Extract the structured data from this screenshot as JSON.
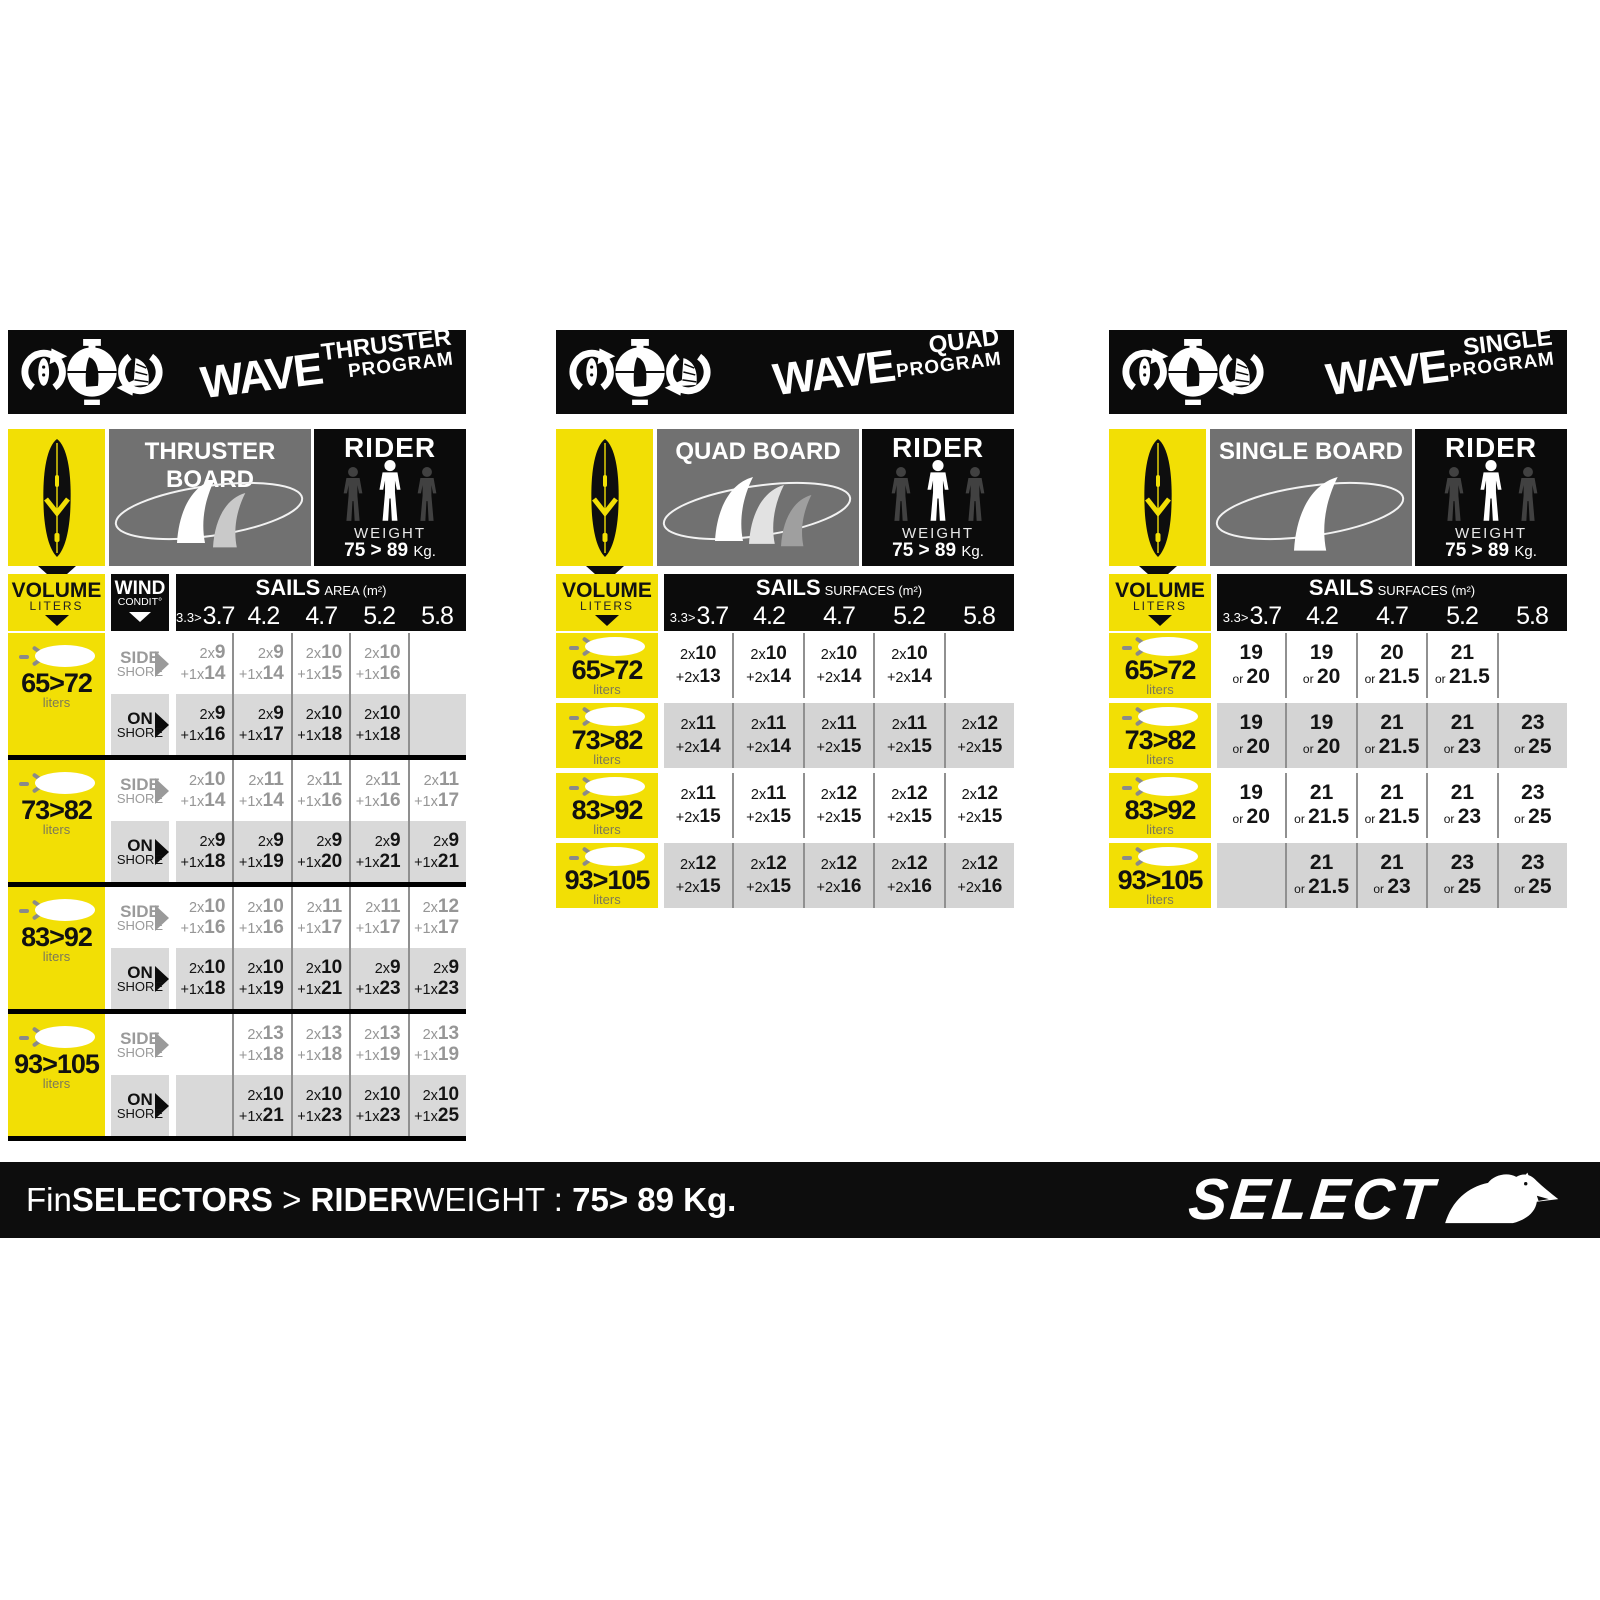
{
  "panels": [
    {
      "program": {
        "wave": "WAVE",
        "suffix": "THRUSTER",
        "sub": "PROGRAM"
      },
      "board_label": "THRUSTER BOARD",
      "rider": {
        "title": "RIDER",
        "weight_label": "WEIGHT",
        "weight_value": "75 > 89",
        "weight_unit": "Kg."
      },
      "volume_header": {
        "title": "VOLUME",
        "sub": "LITERS"
      },
      "wind_header": {
        "title": "WIND",
        "sub": "CONDIT°"
      },
      "sails": {
        "title": "SAILS",
        "unit": "AREA (m²)"
      },
      "sizes": [
        {
          "small": "3.3>",
          "big": "3.7"
        },
        {
          "big": "4.2"
        },
        {
          "big": "4.7"
        },
        {
          "big": "5.2"
        },
        {
          "big": "5.8"
        }
      ],
      "wind_rows": {
        "side": [
          "SIDE",
          "SHORE"
        ],
        "on": [
          "ON",
          "SHORE"
        ]
      },
      "rows": [
        {
          "volume": "65>72",
          "liters": "liters",
          "side": [
            [
              "2x9",
              "+1x14"
            ],
            [
              "2x9",
              "+1x14"
            ],
            [
              "2x10",
              "+1x15"
            ],
            [
              "2x10",
              "+1x16"
            ],
            null
          ],
          "on": [
            [
              "2x9",
              "+1x16"
            ],
            [
              "2x9",
              "+1x17"
            ],
            [
              "2x10",
              "+1x18"
            ],
            [
              "2x10",
              "+1x18"
            ],
            null
          ]
        },
        {
          "volume": "73>82",
          "liters": "liters",
          "side": [
            [
              "2x10",
              "+1x14"
            ],
            [
              "2x11",
              "+1x14"
            ],
            [
              "2x11",
              "+1x16"
            ],
            [
              "2x11",
              "+1x16"
            ],
            [
              "2x11",
              "+1x17"
            ]
          ],
          "on": [
            [
              "2x9",
              "+1x18"
            ],
            [
              "2x9",
              "+1x19"
            ],
            [
              "2x9",
              "+1x20"
            ],
            [
              "2x9",
              "+1x21"
            ],
            [
              "2x9",
              "+1x21"
            ]
          ]
        },
        {
          "volume": "83>92",
          "liters": "liters",
          "side": [
            [
              "2x10",
              "+1x16"
            ],
            [
              "2x10",
              "+1x16"
            ],
            [
              "2x11",
              "+1x17"
            ],
            [
              "2x11",
              "+1x17"
            ],
            [
              "2x12",
              "+1x17"
            ]
          ],
          "on": [
            [
              "2x10",
              "+1x18"
            ],
            [
              "2x10",
              "+1x19"
            ],
            [
              "2x10",
              "+1x21"
            ],
            [
              "2x9",
              "+1x23"
            ],
            [
              "2x9",
              "+1x23"
            ]
          ]
        },
        {
          "volume": "93>105",
          "liters": "liters",
          "side": [
            null,
            [
              "2x13",
              "+1x18"
            ],
            [
              "2x13",
              "+1x18"
            ],
            [
              "2x13",
              "+1x19"
            ],
            [
              "2x13",
              "+1x19"
            ]
          ],
          "on": [
            null,
            [
              "2x10",
              "+1x21"
            ],
            [
              "2x10",
              "+1x23"
            ],
            [
              "2x10",
              "+1x23"
            ],
            [
              "2x10",
              "+1x25"
            ]
          ]
        }
      ]
    },
    {
      "program": {
        "wave": "WAVE",
        "suffix": "QUAD",
        "sub": "PROGRAM"
      },
      "board_label": "QUAD BOARD",
      "rider": {
        "title": "RIDER",
        "weight_label": "WEIGHT",
        "weight_value": "75 > 89",
        "weight_unit": "Kg."
      },
      "volume_header": {
        "title": "VOLUME",
        "sub": "LITERS"
      },
      "sails": {
        "title": "SAILS",
        "unit": "SURFACES (m²)"
      },
      "sizes": [
        {
          "small": "3.3>",
          "big": "3.7"
        },
        {
          "big": "4.2"
        },
        {
          "big": "4.7"
        },
        {
          "big": "5.2"
        },
        {
          "big": "5.8"
        }
      ],
      "rows": [
        {
          "volume": "65>72",
          "liters": "liters",
          "cells": [
            [
              "2x10",
              "+2x13"
            ],
            [
              "2x10",
              "+2x14"
            ],
            [
              "2x10",
              "+2x14"
            ],
            [
              "2x10",
              "+2x14"
            ],
            null
          ]
        },
        {
          "volume": "73>82",
          "liters": "liters",
          "cells": [
            [
              "2x11",
              "+2x14"
            ],
            [
              "2x11",
              "+2x14"
            ],
            [
              "2x11",
              "+2x15"
            ],
            [
              "2x11",
              "+2x15"
            ],
            [
              "2x12",
              "+2x15"
            ]
          ]
        },
        {
          "volume": "83>92",
          "liters": "liters",
          "cells": [
            [
              "2x11",
              "+2x15"
            ],
            [
              "2x11",
              "+2x15"
            ],
            [
              "2x12",
              "+2x15"
            ],
            [
              "2x12",
              "+2x15"
            ],
            [
              "2x12",
              "+2x15"
            ]
          ]
        },
        {
          "volume": "93>105",
          "liters": "liters",
          "cells": [
            [
              "2x12",
              "+2x15"
            ],
            [
              "2x12",
              "+2x15"
            ],
            [
              "2x12",
              "+2x16"
            ],
            [
              "2x12",
              "+2x16"
            ],
            [
              "2x12",
              "+2x16"
            ]
          ]
        }
      ]
    },
    {
      "program": {
        "wave": "WAVE",
        "suffix": "SINGLE",
        "sub": "PROGRAM"
      },
      "board_label": "SINGLE BOARD",
      "rider": {
        "title": "RIDER",
        "weight_label": "WEIGHT",
        "weight_value": "75 > 89",
        "weight_unit": "Kg."
      },
      "volume_header": {
        "title": "VOLUME",
        "sub": "LITERS"
      },
      "sails": {
        "title": "SAILS",
        "unit": "SURFACES (m²)"
      },
      "sizes": [
        {
          "small": "3.3>",
          "big": "3.7"
        },
        {
          "big": "4.2"
        },
        {
          "big": "4.7"
        },
        {
          "big": "5.2"
        },
        {
          "big": "5.8"
        }
      ],
      "rows": [
        {
          "volume": "65>72",
          "liters": "liters",
          "cells": [
            [
              "19",
              "or 20"
            ],
            [
              "19",
              "or 20"
            ],
            [
              "20",
              "or 21.5"
            ],
            [
              "21",
              "or 21.5"
            ],
            null
          ]
        },
        {
          "volume": "73>82",
          "liters": "liters",
          "cells": [
            [
              "19",
              "or 20"
            ],
            [
              "19",
              "or 20"
            ],
            [
              "21",
              "or 21.5"
            ],
            [
              "21",
              "or 23"
            ],
            [
              "23",
              "or 25"
            ]
          ]
        },
        {
          "volume": "83>92",
          "liters": "liters",
          "cells": [
            [
              "19",
              "or 20"
            ],
            [
              "21",
              "or 21.5"
            ],
            [
              "21",
              "or 21.5"
            ],
            [
              "21",
              "or 23"
            ],
            [
              "23",
              "or 25"
            ]
          ]
        },
        {
          "volume": "93>105",
          "liters": "liters",
          "cells": [
            null,
            [
              "21",
              "or 21.5"
            ],
            [
              "21",
              "or 23"
            ],
            [
              "23",
              "or 25"
            ],
            [
              "23",
              "or 25"
            ]
          ]
        }
      ]
    }
  ],
  "footer": {
    "segments": [
      {
        "text": "Fin",
        "bold": false
      },
      {
        "text": "SELECTORS",
        "bold": true
      },
      {
        "text": " > ",
        "bold": false
      },
      {
        "text": "RIDER",
        "bold": true
      },
      {
        "text": "WEIGHT",
        "bold": false
      },
      {
        "text": " : ",
        "bold": false
      },
      {
        "text": "75> 89 Kg.",
        "bold": true
      }
    ],
    "brand": "SELECT"
  },
  "colors": {
    "accent_yellow": "#f2df05",
    "row_gray": "#d9d9d9",
    "board_box_gray": "#717171",
    "black": "#0b0b0b",
    "side_text_gray": "#969696"
  }
}
